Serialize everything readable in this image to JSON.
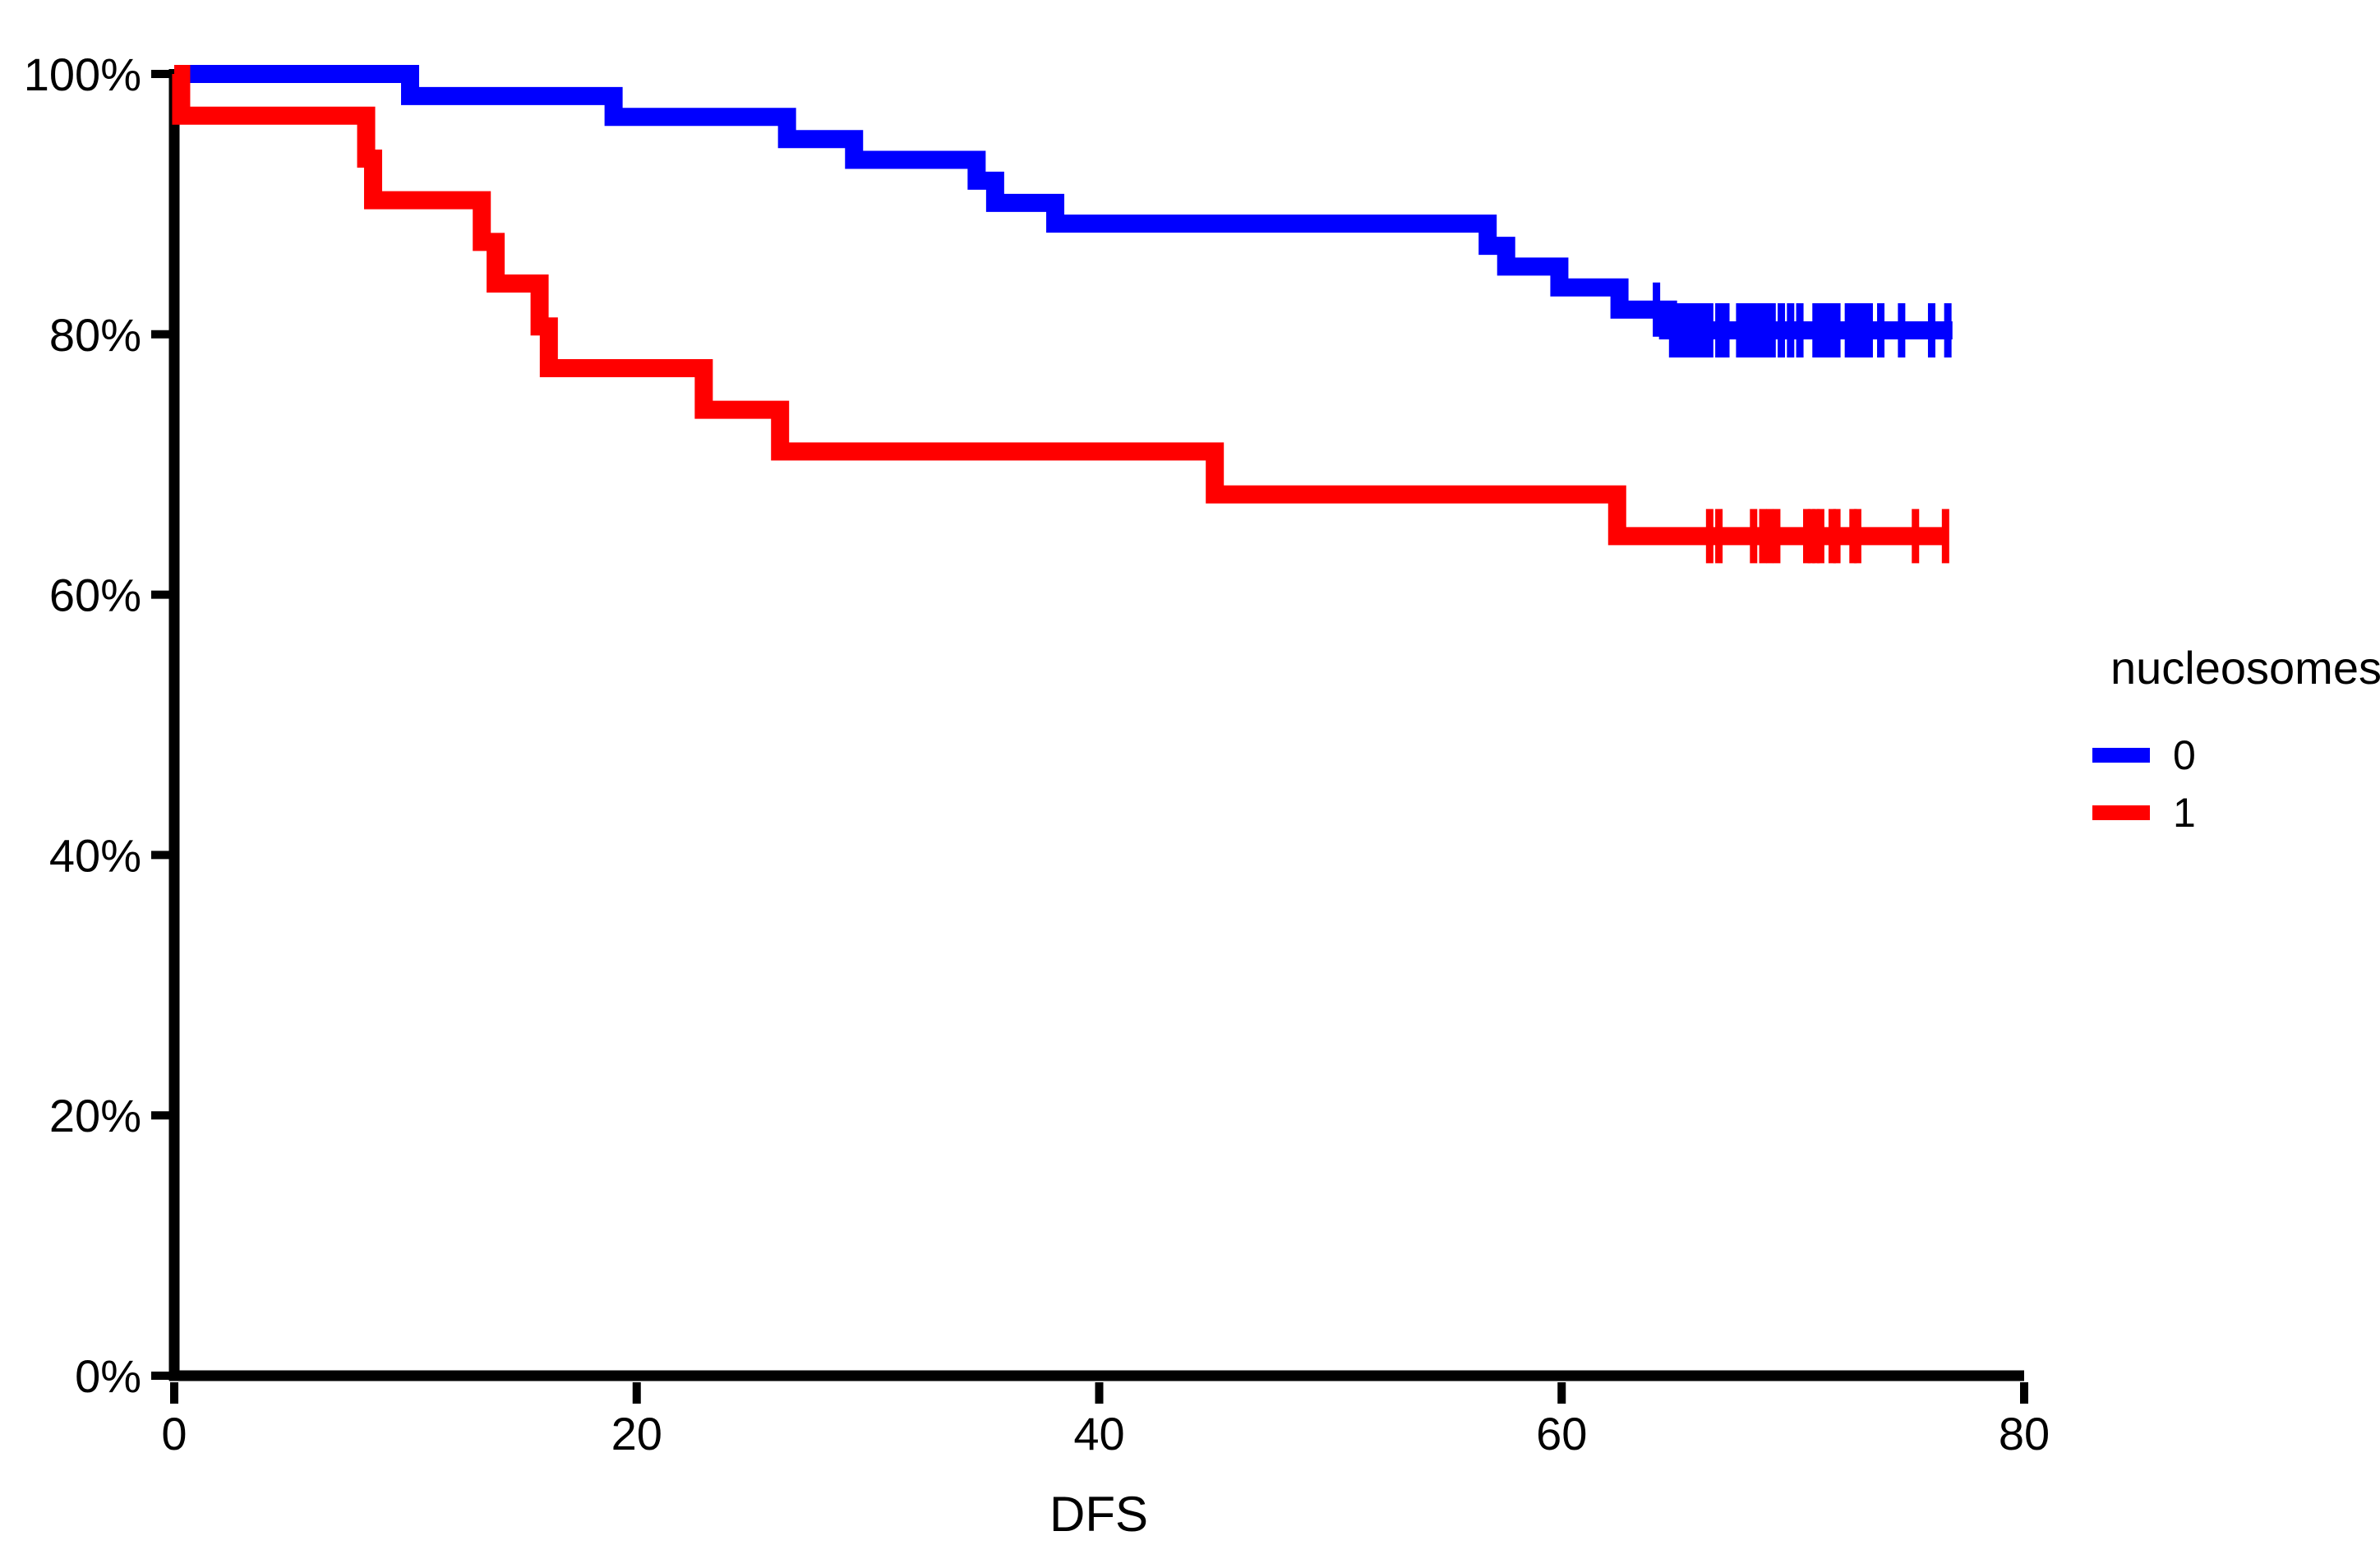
{
  "axes": {
    "x": {
      "label": "DFS",
      "tick_labels": [
        "0",
        "20",
        "40",
        "60",
        "80"
      ],
      "tick_values": [
        0,
        20,
        40,
        60,
        80
      ],
      "range": [
        0,
        80
      ]
    },
    "y": {
      "tick_labels": [
        "0%",
        "20%",
        "40%",
        "60%",
        "80%",
        "100%"
      ],
      "tick_values": [
        0,
        20,
        40,
        60,
        80,
        100
      ],
      "range": [
        0,
        100
      ]
    }
  },
  "legend": {
    "title": "nucleosomes",
    "items": [
      {
        "label": "0",
        "color": "#0000ff"
      },
      {
        "label": "1",
        "color": "#ff0000"
      }
    ]
  },
  "chart_data": {
    "type": "line",
    "variant": "kaplan_meier_step",
    "title": "",
    "xlabel": "DFS",
    "ylabel": "",
    "xlim": [
      0,
      80
    ],
    "ylim": [
      0,
      100
    ],
    "y_unit": "percent_survival",
    "grid": false,
    "legend_position": "right",
    "series": [
      {
        "name": "0",
        "color": "#0000ff",
        "steps": [
          [
            0,
            100
          ],
          [
            10.2,
            98.3
          ],
          [
            19.0,
            96.7
          ],
          [
            26.5,
            95.0
          ],
          [
            29.4,
            93.4
          ],
          [
            34.7,
            91.8
          ],
          [
            35.5,
            90.1
          ],
          [
            38.1,
            88.5
          ],
          [
            56.8,
            86.8
          ],
          [
            57.6,
            85.2
          ],
          [
            59.9,
            83.6
          ],
          [
            62.5,
            81.9
          ],
          [
            64.6,
            80.3
          ]
        ],
        "end_time": 76.9,
        "censor_times": [
          64.1,
          64.8,
          65.1,
          65.4,
          65.6,
          65.9,
          66.2,
          66.4,
          66.8,
          67.1,
          67.7,
          68.0,
          68.3,
          68.6,
          68.8,
          69.1,
          69.5,
          69.9,
          70.3,
          71.0,
          71.3,
          71.6,
          71.9,
          72.4,
          72.7,
          73.0,
          73.3,
          73.8,
          74.7,
          76.0,
          76.7
        ]
      },
      {
        "name": "1",
        "color": "#ff0000",
        "steps": [
          [
            0,
            100
          ],
          [
            0.3,
            96.8
          ],
          [
            8.3,
            93.5
          ],
          [
            8.6,
            90.3
          ],
          [
            13.3,
            87.1
          ],
          [
            13.9,
            83.9
          ],
          [
            15.8,
            80.6
          ],
          [
            16.2,
            77.4
          ],
          [
            22.9,
            74.2
          ],
          [
            26.2,
            71.0
          ],
          [
            45.0,
            67.7
          ],
          [
            62.4,
            64.5
          ]
        ],
        "end_time": 76.7,
        "censor_times": [
          66.4,
          66.8,
          68.3,
          68.7,
          69.0,
          69.3,
          70.6,
          70.8,
          71.0,
          71.2,
          71.7,
          71.9,
          72.6,
          72.8,
          75.3,
          76.6
        ]
      }
    ]
  }
}
